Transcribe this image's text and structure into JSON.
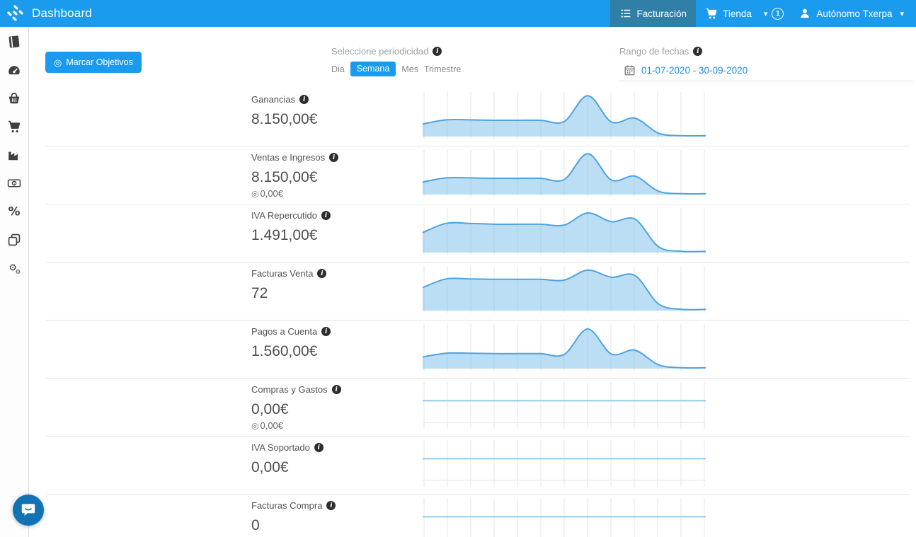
{
  "header": {
    "title": "Dashboard",
    "nav": {
      "facturacion": "Facturación",
      "tienda": "Tienda",
      "notification_count": "1",
      "account": "Autónomo Txerpa"
    }
  },
  "sidebar": {
    "items": [
      {
        "icon": "journal-book"
      },
      {
        "icon": "tachometer"
      },
      {
        "icon": "basket"
      },
      {
        "icon": "shopping-cart"
      },
      {
        "icon": "factory"
      },
      {
        "icon": "money-bill"
      },
      {
        "icon": "percent"
      },
      {
        "icon": "copy"
      },
      {
        "icon": "gears"
      }
    ]
  },
  "toolbar": {
    "mark_objectives_label": "Marcar Objetivos",
    "periodicity": {
      "label": "Seleccione periodicidad",
      "options": [
        "Dia",
        "Semana",
        "Mes",
        "Trimestre"
      ],
      "selected": "Semana"
    },
    "date_range": {
      "label": "Rango de fechas",
      "value": "01-07-2020 - 30-09-2020"
    }
  },
  "metrics": [
    {
      "label": "Ganancias",
      "value": "8.150,00€",
      "goal": null
    },
    {
      "label": "Ventas e Ingresos",
      "value": "8.150,00€",
      "goal": "0,00€"
    },
    {
      "label": "IVA Repercutido",
      "value": "1.491,00€",
      "goal": null
    },
    {
      "label": "Facturas Venta",
      "value": "72",
      "goal": null
    },
    {
      "label": "Pagos a Cuenta",
      "value": "1.560,00€",
      "goal": null
    },
    {
      "label": "Compras y Gastos",
      "value": "0,00€",
      "goal": "0,00€"
    },
    {
      "label": "IVA Soportado",
      "value": "0,00€",
      "goal": null
    },
    {
      "label": "Facturas Compra",
      "value": "0",
      "goal": null
    }
  ],
  "chart_data": [
    {
      "metric": "Ganancias",
      "type": "area",
      "x_unit": "semana",
      "x": [
        1,
        2,
        3,
        4,
        5,
        6,
        7,
        8,
        9,
        10,
        11,
        12,
        13
      ],
      "values_normalized": [
        0.3,
        0.4,
        0.4,
        0.39,
        0.39,
        0.39,
        0.36,
        0.98,
        0.35,
        0.44,
        0.08,
        0.02,
        0.02
      ],
      "total": "8.150,00€",
      "grid": "vertical",
      "legend": "none"
    },
    {
      "metric": "Ventas e Ingresos",
      "type": "area",
      "x_unit": "semana",
      "x": [
        1,
        2,
        3,
        4,
        5,
        6,
        7,
        8,
        9,
        10,
        11,
        12,
        13
      ],
      "values_normalized": [
        0.3,
        0.4,
        0.4,
        0.39,
        0.39,
        0.39,
        0.36,
        0.98,
        0.35,
        0.44,
        0.08,
        0.02,
        0.02
      ],
      "total": "8.150,00€",
      "grid": "vertical",
      "legend": "none"
    },
    {
      "metric": "IVA Repercutido",
      "type": "area",
      "x_unit": "semana",
      "x": [
        1,
        2,
        3,
        4,
        5,
        6,
        7,
        8,
        9,
        10,
        11,
        12,
        13
      ],
      "values_normalized": [
        0.48,
        0.7,
        0.7,
        0.68,
        0.68,
        0.68,
        0.66,
        0.95,
        0.74,
        0.8,
        0.14,
        0.03,
        0.03
      ],
      "total": "1.491,00€",
      "grid": "vertical",
      "legend": "none"
    },
    {
      "metric": "Facturas Venta",
      "type": "area",
      "x_unit": "semana",
      "x": [
        1,
        2,
        3,
        4,
        5,
        6,
        7,
        8,
        9,
        10,
        11,
        12,
        13
      ],
      "values_normalized": [
        0.55,
        0.76,
        0.76,
        0.75,
        0.75,
        0.75,
        0.73,
        0.97,
        0.8,
        0.84,
        0.16,
        0.03,
        0.03
      ],
      "total": "72",
      "grid": "vertical",
      "legend": "none"
    },
    {
      "metric": "Pagos a Cuenta",
      "type": "area",
      "x_unit": "semana",
      "x": [
        1,
        2,
        3,
        4,
        5,
        6,
        7,
        8,
        9,
        10,
        11,
        12,
        13
      ],
      "values_normalized": [
        0.28,
        0.37,
        0.37,
        0.36,
        0.36,
        0.36,
        0.34,
        0.95,
        0.35,
        0.44,
        0.09,
        0.02,
        0.02
      ],
      "total": "1.560,00€",
      "grid": "vertical",
      "legend": "none"
    },
    {
      "metric": "Compras y Gastos",
      "type": "area",
      "x_unit": "semana",
      "x": [
        1,
        2,
        3,
        4,
        5,
        6,
        7,
        8,
        9,
        10,
        11,
        12,
        13
      ],
      "values_normalized": [
        0,
        0,
        0,
        0,
        0,
        0,
        0,
        0,
        0,
        0,
        0,
        0,
        0
      ],
      "total": "0,00€",
      "flat_line": true,
      "grid": "vertical",
      "legend": "none"
    },
    {
      "metric": "IVA Soportado",
      "type": "area",
      "x_unit": "semana",
      "x": [
        1,
        2,
        3,
        4,
        5,
        6,
        7,
        8,
        9,
        10,
        11,
        12,
        13
      ],
      "values_normalized": [
        0,
        0,
        0,
        0,
        0,
        0,
        0,
        0,
        0,
        0,
        0,
        0,
        0
      ],
      "total": "0,00€",
      "flat_line": true,
      "grid": "vertical",
      "legend": "none"
    },
    {
      "metric": "Facturas Compra",
      "type": "area",
      "x_unit": "semana",
      "x": [
        1,
        2,
        3,
        4,
        5,
        6,
        7,
        8,
        9,
        10,
        11,
        12,
        13
      ],
      "values_normalized": [
        0,
        0,
        0,
        0,
        0,
        0,
        0,
        0,
        0,
        0,
        0,
        0,
        0
      ],
      "total": "0",
      "flat_line": true,
      "grid": "vertical",
      "legend": "none"
    }
  ],
  "colors": {
    "header_bg": "#1a9bed",
    "active_nav_bg": "#2f7fa6",
    "accent_blue": "#1a9bed",
    "link_blue": "#1c8fe6",
    "chart_line": "#4da3e0",
    "chart_fill": "rgba(121,189,236,0.5)",
    "chart_flat_line": "#8fccf2",
    "grid_line": "#e4e4e4",
    "row_border": "#e4e4e4",
    "info_icon_bg": "#2e2e2e",
    "chat_bubble_bg": "#1173b4"
  }
}
